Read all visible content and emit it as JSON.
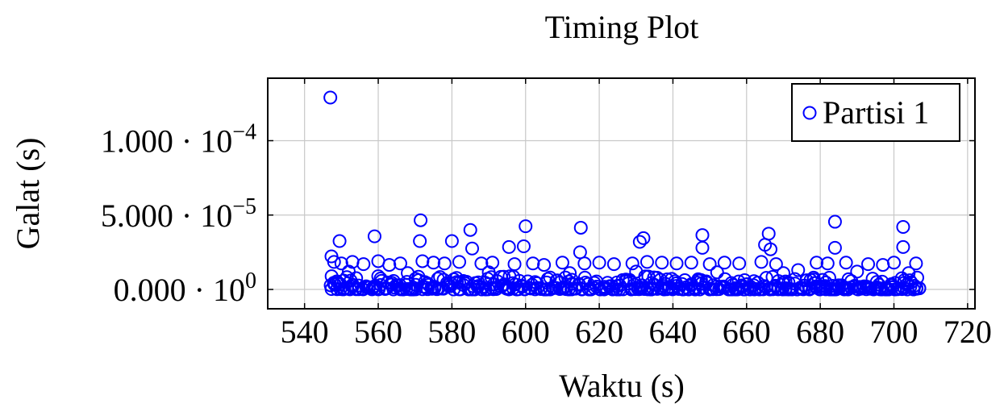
{
  "chart_data": {
    "type": "scatter",
    "title": "Timing Plot",
    "xlabel": "Waktu (s)",
    "ylabel": "Galat (s)",
    "xlim": [
      530,
      722
    ],
    "ylim": [
      -1.3e-05,
      0.000142
    ],
    "x_ticks": [
      540,
      560,
      580,
      600,
      620,
      640,
      660,
      680,
      700,
      720
    ],
    "y_ticks": [
      {
        "value": 0,
        "mantissa": "0.000",
        "base": "10",
        "exponent": "0"
      },
      {
        "value": 5e-05,
        "mantissa": "5.000",
        "base": "10",
        "exponent": "−5"
      },
      {
        "value": 0.0001,
        "mantissa": "1.000",
        "base": "10",
        "exponent": "−4"
      }
    ],
    "grid": true,
    "legend_position": "top-right",
    "series": [
      {
        "name": "Partisi 1",
        "color": "#0000ff",
        "marker": "open-circle",
        "points": [
          [
            547.0,
            0.000129
          ],
          [
            547.3,
            2.22e-05
          ],
          [
            549.5,
            3.25e-05
          ],
          [
            559.0,
            3.57e-05
          ],
          [
            571.5,
            4.65e-05
          ],
          [
            571.3,
            3.25e-05
          ],
          [
            580.0,
            3.25e-05
          ],
          [
            585.0,
            4e-05
          ],
          [
            585.5,
            2.75e-05
          ],
          [
            595.5,
            2.85e-05
          ],
          [
            600.0,
            4.25e-05
          ],
          [
            599.5,
            2.9e-05
          ],
          [
            615.0,
            4.15e-05
          ],
          [
            614.8,
            2.5e-05
          ],
          [
            631.0,
            3.2e-05
          ],
          [
            632.0,
            3.45e-05
          ],
          [
            648.0,
            3.65e-05
          ],
          [
            648.0,
            2.8e-05
          ],
          [
            665.0,
            3e-05
          ],
          [
            666.0,
            3.75e-05
          ],
          [
            666.5,
            2.7e-05
          ],
          [
            684.0,
            4.55e-05
          ],
          [
            684.0,
            2.8e-05
          ],
          [
            702.5,
            4.2e-05
          ],
          [
            702.5,
            2.85e-05
          ],
          [
            548.0,
            1.85e-05
          ],
          [
            550.0,
            1.75e-05
          ],
          [
            553.0,
            1.85e-05
          ],
          [
            556.0,
            1.7e-05
          ],
          [
            560.0,
            1.9e-05
          ],
          [
            563.0,
            1.65e-05
          ],
          [
            566.0,
            1.75e-05
          ],
          [
            572.0,
            1.9e-05
          ],
          [
            575.0,
            1.8e-05
          ],
          [
            578.0,
            1.75e-05
          ],
          [
            582.0,
            1.85e-05
          ],
          [
            588.0,
            1.75e-05
          ],
          [
            591.0,
            1.8e-05
          ],
          [
            597.0,
            1.7e-05
          ],
          [
            602.0,
            1.75e-05
          ],
          [
            605.0,
            1.65e-05
          ],
          [
            610.0,
            1.8e-05
          ],
          [
            616.0,
            1.75e-05
          ],
          [
            620.0,
            1.8e-05
          ],
          [
            624.0,
            1.7e-05
          ],
          [
            629.0,
            1.75e-05
          ],
          [
            633.0,
            1.85e-05
          ],
          [
            637.0,
            1.8e-05
          ],
          [
            641.0,
            1.75e-05
          ],
          [
            645.0,
            1.8e-05
          ],
          [
            650.0,
            1.7e-05
          ],
          [
            654.0,
            1.8e-05
          ],
          [
            658.0,
            1.75e-05
          ],
          [
            664.0,
            1.85e-05
          ],
          [
            668.0,
            1.7e-05
          ],
          [
            674.0,
            1.3e-05
          ],
          [
            679.0,
            1.8e-05
          ],
          [
            682.0,
            1.75e-05
          ],
          [
            687.0,
            1.8e-05
          ],
          [
            693.0,
            1.7e-05
          ],
          [
            697.0,
            1.65e-05
          ],
          [
            700.0,
            1.8e-05
          ],
          [
            706.0,
            1.75e-05
          ],
          [
            552.0,
            1.2e-05
          ],
          [
            568.0,
            1.1e-05
          ],
          [
            590.0,
            1.15e-05
          ],
          [
            612.0,
            1.1e-05
          ],
          [
            630.0,
            1.2e-05
          ],
          [
            652.0,
            1.15e-05
          ],
          [
            670.0,
            1.1e-05
          ],
          [
            690.0,
            1.2e-05
          ],
          [
            704.0,
            1.1e-05
          ]
        ]
      }
    ]
  }
}
